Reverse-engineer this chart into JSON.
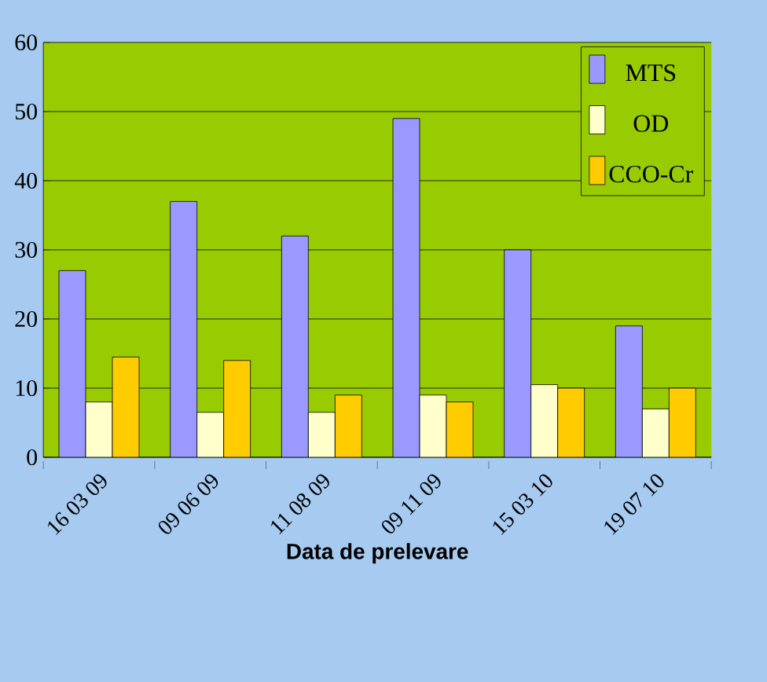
{
  "chart_data": {
    "type": "bar",
    "xlabel": "Data de  prelevare",
    "categories": [
      "16 03 09",
      "09 06 09",
      "11 08 09",
      "09 11 09",
      "15 03 10",
      "19 07 10"
    ],
    "series": [
      {
        "name": "MTS",
        "color": "#9999ff",
        "values": [
          27,
          37,
          32,
          49,
          30,
          19
        ]
      },
      {
        "name": "OD",
        "color": "#ffffcc",
        "values": [
          8,
          6.5,
          6.5,
          9,
          10.5,
          7
        ]
      },
      {
        "name": "CCO-Cr",
        "color": "#ffcc00",
        "values": [
          14.5,
          14,
          9,
          8,
          10,
          10
        ]
      }
    ],
    "ylim": [
      0,
      60
    ],
    "yticks": [
      0,
      10,
      20,
      30,
      40,
      50,
      60
    ],
    "grid": "y",
    "legend": "top right"
  }
}
